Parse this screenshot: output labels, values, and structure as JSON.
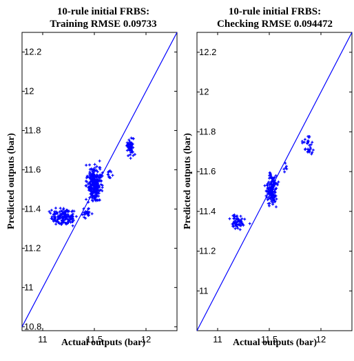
{
  "chart_data": [
    {
      "type": "scatter",
      "title_line1": "10-rule initial FRBS:",
      "title_line2": "Training RMSE 0.09733",
      "xlabel": "Actual outputs (bar)",
      "ylabel": "Predicted outputs (bar)",
      "xlim": [
        10.8,
        12.3
      ],
      "ylim": [
        10.78,
        12.3
      ],
      "xticks": [
        11,
        11.5,
        12
      ],
      "xtick_labels": [
        "11",
        "11.5",
        "12"
      ],
      "yticks": [
        10.8,
        11,
        11.2,
        11.4,
        11.6,
        11.8,
        12,
        12.2
      ],
      "ytick_labels": [
        "10.8",
        "11",
        "11.2",
        "11.4",
        "11.6",
        "11.8",
        "12",
        "12.2"
      ],
      "reference_line": "y = x",
      "marker": "+",
      "color": "#0000ff",
      "point_clusters": [
        {
          "x_range": [
            11.05,
            11.35
          ],
          "y_range": [
            11.3,
            11.42
          ],
          "count": 150
        },
        {
          "x_range": [
            11.35,
            11.5
          ],
          "y_range": [
            11.33,
            11.42
          ],
          "count": 25
        },
        {
          "x_range": [
            11.4,
            11.6
          ],
          "y_range": [
            11.4,
            11.66
          ],
          "count": 260
        },
        {
          "x_range": [
            11.6,
            11.7
          ],
          "y_range": [
            11.53,
            11.62
          ],
          "count": 10
        },
        {
          "x_range": [
            11.8,
            11.9
          ],
          "y_range": [
            11.64,
            11.78
          ],
          "count": 60
        }
      ]
    },
    {
      "type": "scatter",
      "title_line1": "10-rule initial FRBS:",
      "title_line2": "Checking RMSE 0.094472",
      "xlabel": "Actual outputs (bar)",
      "ylabel": "Predicted outputs (bar)",
      "xlim": [
        10.8,
        12.3
      ],
      "ylim": [
        10.8,
        12.3
      ],
      "xticks": [
        11,
        11.5,
        12
      ],
      "xtick_labels": [
        "11",
        "11.5",
        "12"
      ],
      "yticks": [
        11,
        11.2,
        11.4,
        11.6,
        11.8,
        12,
        12.2
      ],
      "ytick_labels": [
        "11",
        "11.2",
        "11.4",
        "11.6",
        "11.8",
        "12",
        "12.2"
      ],
      "reference_line": "y = x",
      "marker": "+",
      "color": "#0000ff",
      "point_clusters": [
        {
          "x_range": [
            11.08,
            11.32
          ],
          "y_range": [
            11.3,
            11.4
          ],
          "count": 55
        },
        {
          "x_range": [
            11.45,
            11.6
          ],
          "y_range": [
            11.4,
            11.62
          ],
          "count": 160
        },
        {
          "x_range": [
            11.6,
            11.7
          ],
          "y_range": [
            11.58,
            11.66
          ],
          "count": 6
        },
        {
          "x_range": [
            11.8,
            11.95
          ],
          "y_range": [
            11.66,
            11.8
          ],
          "count": 30
        }
      ]
    }
  ]
}
